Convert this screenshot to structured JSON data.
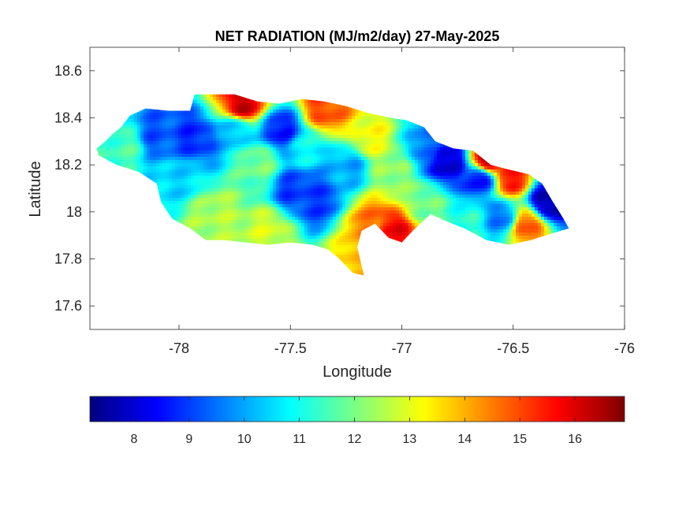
{
  "figure": {
    "title": "NET RADIATION (MJ/m2/day) 27-May-2025",
    "xlabel": "Longitude",
    "ylabel": "Latitude"
  },
  "axes": {
    "xlim": [
      -78.4,
      -76
    ],
    "ylim": [
      17.5,
      18.7
    ],
    "xticks": [
      -78,
      -77.5,
      -77,
      -76.5,
      -76
    ],
    "xtick_labels": [
      "-78",
      "-77.5",
      "-77",
      "-76.5",
      "-76"
    ],
    "yticks": [
      17.6,
      17.8,
      18,
      18.2,
      18.4,
      18.6
    ],
    "ytick_labels": [
      "17.6",
      "17.8",
      "18",
      "18.2",
      "18.4",
      "18.6"
    ],
    "grid": false,
    "box": true
  },
  "colorbar": {
    "colormap": "jet",
    "location": "bottom",
    "range": [
      7.2,
      16.9
    ],
    "ticks": [
      8,
      9,
      10,
      11,
      12,
      13,
      14,
      15,
      16
    ],
    "tick_labels": [
      "8",
      "9",
      "10",
      "11",
      "12",
      "13",
      "14",
      "15",
      "16"
    ],
    "colors": [
      "#00007f",
      "#0000ff",
      "#007fff",
      "#00ffff",
      "#7fff7f",
      "#ffff00",
      "#ff7f00",
      "#ff0000",
      "#7f0000"
    ]
  },
  "chart_data": {
    "type": "heatmap",
    "title": "NET RADIATION (MJ/m2/day) 27-May-2025",
    "xlabel": "Longitude",
    "ylabel": "Latitude",
    "units": "MJ/m2/day",
    "date": "27-May-2025",
    "region": "Jamaica",
    "xlim": [
      -78.4,
      -76
    ],
    "ylim": [
      17.5,
      18.7
    ],
    "value_range": [
      7.2,
      16.9
    ],
    "grid": false,
    "legend": "colorbar-bottom",
    "outline": [
      [
        -78.37,
        18.27
      ],
      [
        -78.33,
        18.3
      ],
      [
        -78.3,
        18.33
      ],
      [
        -78.26,
        18.36
      ],
      [
        -78.22,
        18.41
      ],
      [
        -78.15,
        18.44
      ],
      [
        -78.05,
        18.43
      ],
      [
        -77.95,
        18.43
      ],
      [
        -77.93,
        18.5
      ],
      [
        -77.85,
        18.5
      ],
      [
        -77.75,
        18.5
      ],
      [
        -77.65,
        18.47
      ],
      [
        -77.55,
        18.46
      ],
      [
        -77.45,
        18.48
      ],
      [
        -77.35,
        18.47
      ],
      [
        -77.25,
        18.45
      ],
      [
        -77.15,
        18.42
      ],
      [
        -77.05,
        18.4
      ],
      [
        -76.98,
        18.39
      ],
      [
        -76.9,
        18.36
      ],
      [
        -76.85,
        18.3
      ],
      [
        -76.77,
        18.27
      ],
      [
        -76.68,
        18.26
      ],
      [
        -76.6,
        18.2
      ],
      [
        -76.52,
        18.18
      ],
      [
        -76.43,
        18.16
      ],
      [
        -76.37,
        18.12
      ],
      [
        -76.32,
        18.04
      ],
      [
        -76.28,
        17.98
      ],
      [
        -76.25,
        17.93
      ],
      [
        -76.32,
        17.91
      ],
      [
        -76.42,
        17.88
      ],
      [
        -76.52,
        17.86
      ],
      [
        -76.62,
        17.88
      ],
      [
        -76.72,
        17.93
      ],
      [
        -76.8,
        17.96
      ],
      [
        -76.87,
        17.99
      ],
      [
        -76.95,
        17.92
      ],
      [
        -77.0,
        17.87
      ],
      [
        -77.06,
        17.89
      ],
      [
        -77.12,
        17.95
      ],
      [
        -77.18,
        17.92
      ],
      [
        -77.2,
        17.85
      ],
      [
        -77.18,
        17.77
      ],
      [
        -77.17,
        17.73
      ],
      [
        -77.22,
        17.74
      ],
      [
        -77.28,
        17.8
      ],
      [
        -77.33,
        17.84
      ],
      [
        -77.4,
        17.86
      ],
      [
        -77.5,
        17.87
      ],
      [
        -77.6,
        17.86
      ],
      [
        -77.7,
        17.87
      ],
      [
        -77.8,
        17.88
      ],
      [
        -77.88,
        17.88
      ],
      [
        -77.95,
        17.93
      ],
      [
        -78.03,
        17.97
      ],
      [
        -78.08,
        18.04
      ],
      [
        -78.1,
        18.12
      ],
      [
        -78.18,
        18.17
      ],
      [
        -78.28,
        18.2
      ],
      [
        -78.36,
        18.24
      ]
    ],
    "field_hotspots": [
      {
        "lon": -78.1,
        "lat": 18.33,
        "value": 9.2
      },
      {
        "lon": -77.93,
        "lat": 18.32,
        "value": 8.8
      },
      {
        "lon": -77.55,
        "lat": 18.35,
        "value": 8.5
      },
      {
        "lon": -77.48,
        "lat": 18.1,
        "value": 8.9
      },
      {
        "lon": -77.38,
        "lat": 18.05,
        "value": 9.0
      },
      {
        "lon": -76.8,
        "lat": 18.22,
        "value": 7.8
      },
      {
        "lon": -76.65,
        "lat": 18.15,
        "value": 8.2
      },
      {
        "lon": -76.35,
        "lat": 18.05,
        "value": 7.5
      },
      {
        "lon": -76.55,
        "lat": 17.98,
        "value": 9.5
      },
      {
        "lon": -77.72,
        "lat": 18.46,
        "value": 16.2
      },
      {
        "lon": -77.35,
        "lat": 18.44,
        "value": 15.0
      },
      {
        "lon": -77.05,
        "lat": 17.93,
        "value": 15.8
      },
      {
        "lon": -77.15,
        "lat": 17.95,
        "value": 14.5
      },
      {
        "lon": -76.62,
        "lat": 18.22,
        "value": 16.4
      },
      {
        "lon": -76.52,
        "lat": 18.15,
        "value": 15.5
      },
      {
        "lon": -76.45,
        "lat": 17.95,
        "value": 15.0
      },
      {
        "lon": -77.17,
        "lat": 17.84,
        "value": 13.8
      },
      {
        "lon": -77.65,
        "lat": 18.22,
        "value": 12.0
      },
      {
        "lon": -77.85,
        "lat": 18.0,
        "value": 12.5
      },
      {
        "lon": -77.6,
        "lat": 17.93,
        "value": 12.8
      },
      {
        "lon": -77.05,
        "lat": 18.2,
        "value": 12.3
      },
      {
        "lon": -77.15,
        "lat": 18.32,
        "value": 13.2
      },
      {
        "lon": -76.92,
        "lat": 18.05,
        "value": 12.0
      },
      {
        "lon": -78.25,
        "lat": 18.28,
        "value": 11.5
      },
      {
        "lon": -78.0,
        "lat": 18.15,
        "value": 10.5
      },
      {
        "lon": -77.75,
        "lat": 18.35,
        "value": 10.2
      },
      {
        "lon": -77.25,
        "lat": 18.2,
        "value": 10.0
      },
      {
        "lon": -76.9,
        "lat": 18.28,
        "value": 9.6
      },
      {
        "lon": -76.72,
        "lat": 17.95,
        "value": 11.2
      },
      {
        "lon": -77.45,
        "lat": 18.28,
        "value": 10.8
      }
    ]
  }
}
